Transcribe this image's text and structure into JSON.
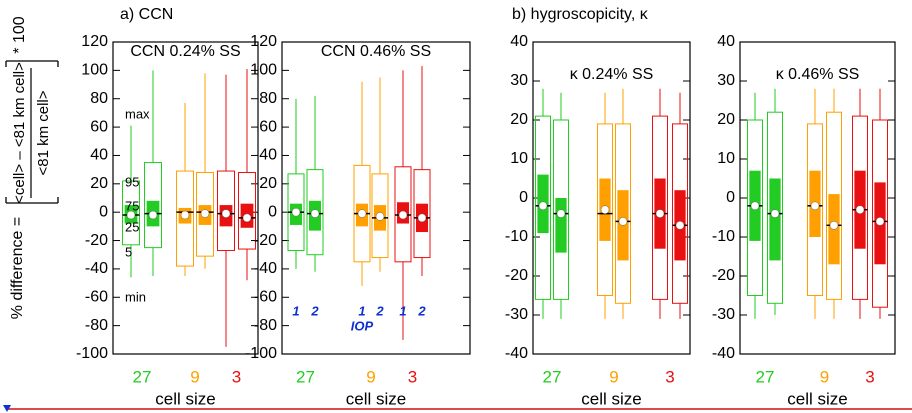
{
  "figure": {
    "panel_a": "a) CCN",
    "panel_b": "b) hygroscopicity, κ",
    "ylabel_prefix": "% difference =",
    "ylabel_numerator": "<cell> – <81 km cell>",
    "ylabel_denominator": "<81 km cell>",
    "ylabel_factor": "* 100"
  },
  "chart_data": [
    {
      "type": "box",
      "title": "CCN 0.24% SS",
      "xlabel": "cell size",
      "categories": [
        "27",
        "9",
        "3"
      ],
      "ylim": [
        -100,
        120
      ],
      "yticks": [
        -100,
        -80,
        -60,
        -40,
        -20,
        0,
        20,
        40,
        60,
        80,
        100,
        120
      ],
      "annotations": [
        "max",
        "95",
        "75",
        "25",
        "5",
        "min"
      ],
      "boxes": [
        {
          "color": "#22cc22",
          "min": -46,
          "p5": -23,
          "p25": -8,
          "median": -2,
          "mean": -2,
          "p75": 5,
          "p95": 22,
          "max": 61
        },
        {
          "color": "#22cc22",
          "min": -45,
          "p5": -25,
          "p25": -10,
          "median": -1,
          "mean": -2,
          "p75": 8,
          "p95": 35,
          "max": 100
        },
        {
          "color": "#ffa000",
          "min": -45,
          "p5": -38,
          "p25": -8,
          "median": 0,
          "mean": -2,
          "p75": 3,
          "p95": 29,
          "max": 77
        },
        {
          "color": "#ffa000",
          "min": -40,
          "p5": -31,
          "p25": -9,
          "median": 0,
          "mean": -1,
          "p75": 5,
          "p95": 28,
          "max": 98
        },
        {
          "color": "#e81010",
          "min": -95,
          "p5": -27,
          "p25": -10,
          "median": -1,
          "mean": -1,
          "p75": 5,
          "p95": 29,
          "max": 97
        },
        {
          "color": "#e81010",
          "min": -48,
          "p5": -26,
          "p25": -11,
          "median": -4,
          "mean": -4,
          "p75": 6,
          "p95": 28,
          "max": 101
        }
      ]
    },
    {
      "type": "box",
      "title": "CCN 0.46% SS",
      "xlabel": "cell size",
      "categories": [
        "27",
        "9",
        "3"
      ],
      "ylim": [
        -100,
        120
      ],
      "yticks": [
        -100,
        -80,
        -60,
        -40,
        -20,
        0,
        20,
        40,
        60,
        80,
        100,
        120
      ],
      "annotations": [
        "1",
        "2",
        "1",
        "2",
        "1",
        "2",
        "IOP"
      ],
      "boxes": [
        {
          "color": "#22cc22",
          "min": -40,
          "p5": -27,
          "p25": -9,
          "median": 0,
          "mean": 0,
          "p75": 6,
          "p95": 27,
          "max": 80
        },
        {
          "color": "#22cc22",
          "min": -42,
          "p5": -30,
          "p25": -13,
          "median": -1,
          "mean": -1,
          "p75": 8,
          "p95": 30,
          "max": 82
        },
        {
          "color": "#ffa000",
          "min": -52,
          "p5": -35,
          "p25": -10,
          "median": -1,
          "mean": -1,
          "p75": 6,
          "p95": 33,
          "max": 92
        },
        {
          "color": "#ffa000",
          "min": -42,
          "p5": -32,
          "p25": -13,
          "median": -4,
          "mean": -3,
          "p75": 5,
          "p95": 27,
          "max": 95
        },
        {
          "color": "#e81010",
          "min": -90,
          "p5": -35,
          "p25": -8,
          "median": -2,
          "mean": -2,
          "p75": 7,
          "p95": 32,
          "max": 100
        },
        {
          "color": "#e81010",
          "min": -45,
          "p5": -32,
          "p25": -14,
          "median": -4,
          "mean": -4,
          "p75": 6,
          "p95": 30,
          "max": 103
        }
      ]
    },
    {
      "type": "box",
      "title": "κ 0.24% SS",
      "xlabel": "cell size",
      "categories": [
        "27",
        "9",
        "3"
      ],
      "ylim": [
        -40,
        40
      ],
      "yticks": [
        -40,
        -30,
        -20,
        -10,
        0,
        10,
        20,
        30,
        40
      ],
      "boxes": [
        {
          "color": "#22cc22",
          "min": -31,
          "p5": -26,
          "p25": -9,
          "median": -2,
          "mean": -2,
          "p75": 6,
          "p95": 21,
          "max": 28
        },
        {
          "color": "#22cc22",
          "min": -31,
          "p5": -26,
          "p25": -14,
          "median": -4,
          "mean": -4,
          "p75": 0,
          "p95": 20,
          "max": 27
        },
        {
          "color": "#ffa000",
          "min": -31,
          "p5": -25,
          "p25": -11,
          "median": -4,
          "mean": -3,
          "p75": 5,
          "p95": 19,
          "max": 27
        },
        {
          "color": "#ffa000",
          "min": -31,
          "p5": -27,
          "p25": -16,
          "median": -6,
          "mean": -6,
          "p75": 2,
          "p95": 19,
          "max": 28
        },
        {
          "color": "#e81010",
          "min": -31,
          "p5": -26,
          "p25": -13,
          "median": -4,
          "mean": -4,
          "p75": 5,
          "p95": 21,
          "max": 28
        },
        {
          "color": "#e81010",
          "min": -31,
          "p5": -27,
          "p25": -16,
          "median": -7,
          "mean": -7,
          "p75": 2,
          "p95": 19,
          "max": 27
        }
      ]
    },
    {
      "type": "box",
      "title": "κ 0.46% SS",
      "xlabel": "cell size",
      "categories": [
        "27",
        "9",
        "3"
      ],
      "ylim": [
        -40,
        40
      ],
      "yticks": [
        -40,
        -30,
        -20,
        -10,
        0,
        10,
        20,
        30,
        40
      ],
      "boxes": [
        {
          "color": "#22cc22",
          "min": -31,
          "p5": -25,
          "p25": -11,
          "median": -2,
          "mean": -2,
          "p75": 7,
          "p95": 20,
          "max": 27
        },
        {
          "color": "#22cc22",
          "min": -30,
          "p5": -27,
          "p25": -16,
          "median": -4,
          "mean": -4,
          "p75": 5,
          "p95": 22,
          "max": 28
        },
        {
          "color": "#ffa000",
          "min": -31,
          "p5": -25,
          "p25": -10,
          "median": -2,
          "mean": -2,
          "p75": 7,
          "p95": 19,
          "max": 28
        },
        {
          "color": "#ffa000",
          "min": -31,
          "p5": -26,
          "p25": -17,
          "median": -7,
          "mean": -7,
          "p75": 1,
          "p95": 22,
          "max": 28
        },
        {
          "color": "#e81010",
          "min": -31,
          "p5": -26,
          "p25": -13,
          "median": -3,
          "mean": -3,
          "p75": 7,
          "p95": 21,
          "max": 28
        },
        {
          "color": "#e81010",
          "min": -31,
          "p5": -28,
          "p25": -17,
          "median": -6,
          "mean": -6,
          "p75": 4,
          "p95": 20,
          "max": 28
        }
      ]
    }
  ]
}
